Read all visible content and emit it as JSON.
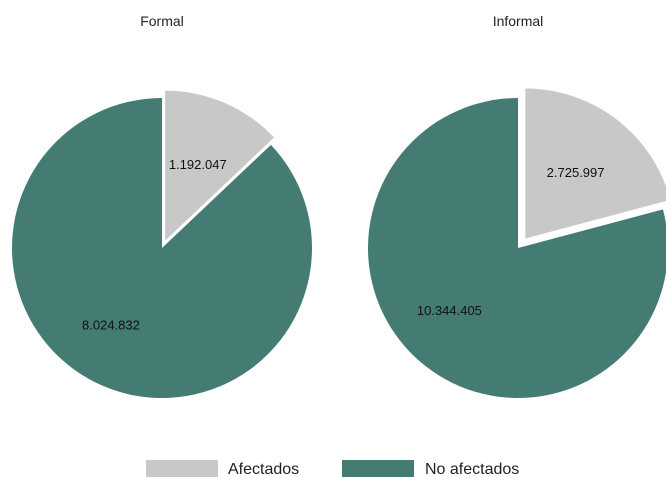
{
  "chart_data": {
    "type": "pie",
    "legend": {
      "position": "bottom",
      "entries": [
        {
          "label": "Afectados",
          "color": "#c8c8c8"
        },
        {
          "label": "No afectados",
          "color": "#447c73"
        }
      ]
    },
    "panels": [
      {
        "title": "Formal",
        "slices": [
          {
            "category": "Afectados",
            "value": 1192047,
            "label": "1.192.047",
            "exploded": true
          },
          {
            "category": "No afectados",
            "value": 8024832,
            "label": "8.024.832",
            "exploded": false
          }
        ]
      },
      {
        "title": "Informal",
        "slices": [
          {
            "category": "Afectados",
            "value": 2725997,
            "label": "2.725.997",
            "exploded": true
          },
          {
            "category": "No afectados",
            "value": 10344405,
            "label": "10.344.405",
            "exploded": false
          }
        ]
      }
    ]
  }
}
